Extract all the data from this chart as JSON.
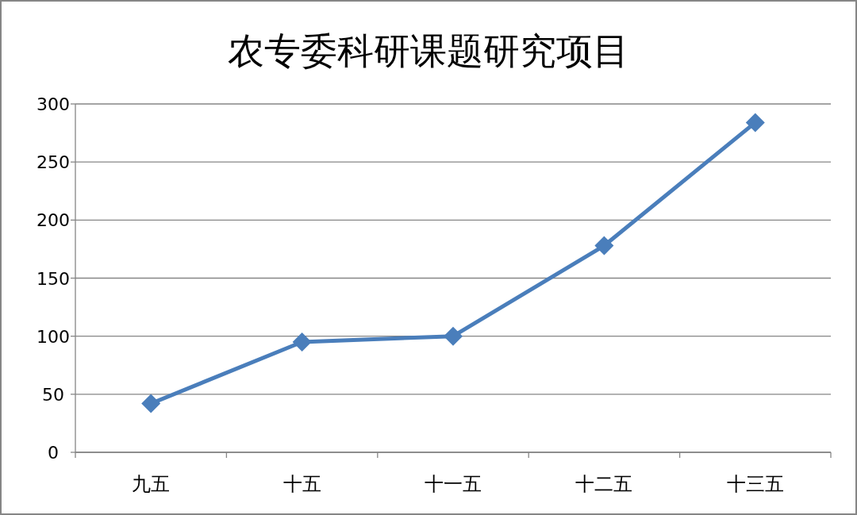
{
  "chart_data": {
    "type": "line",
    "title": "农专委科研课题研究项目",
    "categories": [
      "九五",
      "十五",
      "十一五",
      "十二五",
      "十三五"
    ],
    "values": [
      42,
      95,
      100,
      178,
      284
    ],
    "color": "#4a7ebb",
    "ylim": [
      0,
      300
    ],
    "yticks": [
      0,
      50,
      100,
      150,
      200,
      250,
      300
    ],
    "grid": "y",
    "marker": "diamond",
    "line_style": "solid"
  }
}
